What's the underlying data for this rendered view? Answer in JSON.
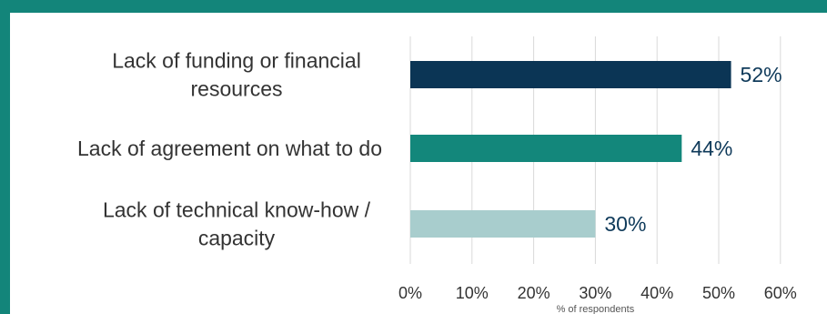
{
  "chart_data": {
    "type": "bar",
    "orientation": "horizontal",
    "categories": [
      [
        "Lack of funding or financial",
        "resources"
      ],
      [
        "Lack of agreement on what to do"
      ],
      [
        "Lack of technical know-how /",
        "capacity"
      ]
    ],
    "values": [
      52,
      44,
      30
    ],
    "value_labels": [
      "52%",
      "44%",
      "30%"
    ],
    "bar_colors": [
      "#0b3555",
      "#13877b",
      "#a8cdcd"
    ],
    "xlim": [
      0,
      60
    ],
    "xticks": [
      0,
      10,
      20,
      30,
      40,
      50,
      60
    ],
    "xtick_labels": [
      "0%",
      "10%",
      "20%",
      "30%",
      "40%",
      "50%",
      "60%"
    ],
    "xlabel": "% of respondents",
    "grid": "vertical",
    "legend": "none"
  },
  "colors": {
    "frame": "#13857a",
    "grid": "#d9d9d9",
    "text": "#333333",
    "value_text": "#0f3a5a"
  }
}
